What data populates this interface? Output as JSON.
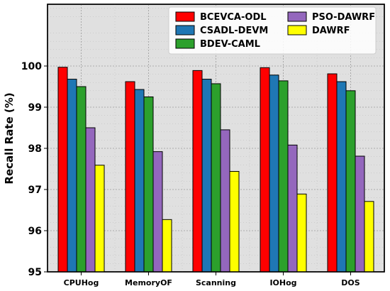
{
  "chart_data": {
    "type": "bar",
    "ylabel": "Recall Rate (%)",
    "xlabel": "",
    "ylim": [
      95,
      101.5
    ],
    "yticks": [
      95,
      96,
      97,
      98,
      99,
      100
    ],
    "grid": true,
    "legend_position": "top-right",
    "categories": [
      "CPUHog",
      "MemoryOF",
      "Scanning",
      "IOHog",
      "DOS"
    ],
    "series": [
      {
        "name": "BCEVCA-ODL",
        "color": "#ff0000",
        "values": [
          99.97,
          99.62,
          99.89,
          99.96,
          99.81
        ]
      },
      {
        "name": "CSADL-DEVM",
        "color": "#1f77b4",
        "values": [
          99.68,
          99.43,
          99.68,
          99.78,
          99.62
        ]
      },
      {
        "name": "BDEV-CAML",
        "color": "#2ca02c",
        "values": [
          99.5,
          99.25,
          99.57,
          99.64,
          99.4
        ]
      },
      {
        "name": "PSO-DAWRF",
        "color": "#9467bd",
        "values": [
          98.5,
          97.92,
          98.45,
          98.08,
          97.81
        ]
      },
      {
        "name": "DAWRF",
        "color": "#ffff00",
        "values": [
          97.59,
          96.27,
          97.44,
          96.89,
          96.71
        ]
      }
    ]
  }
}
